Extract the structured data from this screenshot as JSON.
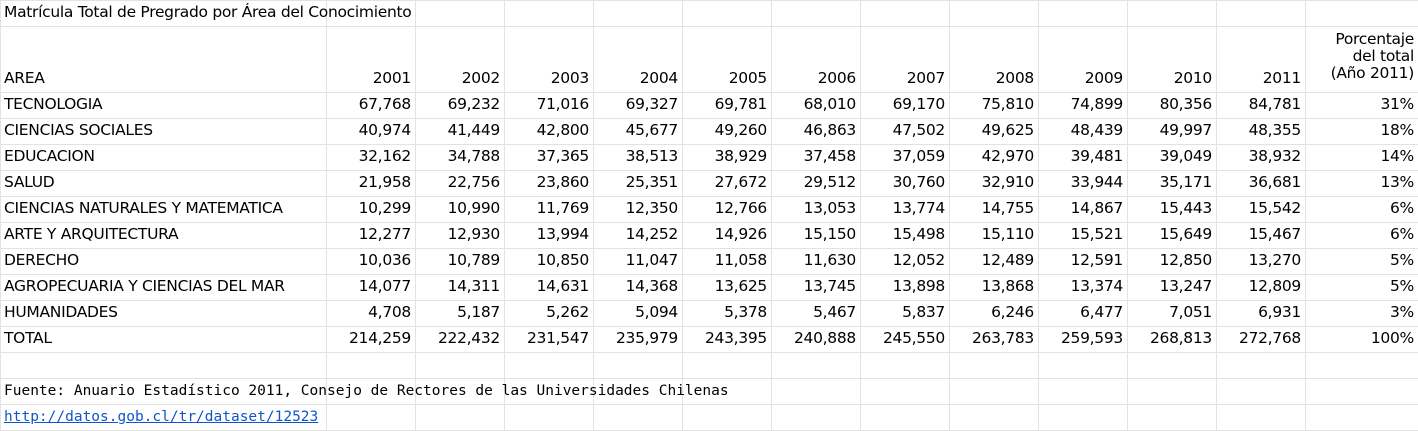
{
  "sheet": {
    "title": "Matrícula Total de Pregrado por Área del Conocimiento",
    "columns": [
      "AREA",
      "2001",
      "2002",
      "2003",
      "2004",
      "2005",
      "2006",
      "2007",
      "2008",
      "2009",
      "2010",
      "2011",
      "Porcentaje\ndel total\n(Año 2011)"
    ],
    "rows": [
      {
        "area": "TECNOLOGIA",
        "values": [
          "67,768",
          "69,232",
          "71,016",
          "69,327",
          "69,781",
          "68,010",
          "69,170",
          "75,810",
          "74,899",
          "80,356",
          "84,781",
          "31%"
        ]
      },
      {
        "area": "CIENCIAS SOCIALES",
        "values": [
          "40,974",
          "41,449",
          "42,800",
          "45,677",
          "49,260",
          "46,863",
          "47,502",
          "49,625",
          "48,439",
          "49,997",
          "48,355",
          "18%"
        ]
      },
      {
        "area": "EDUCACION",
        "values": [
          "32,162",
          "34,788",
          "37,365",
          "38,513",
          "38,929",
          "37,458",
          "37,059",
          "42,970",
          "39,481",
          "39,049",
          "38,932",
          "14%"
        ]
      },
      {
        "area": "SALUD",
        "values": [
          "21,958",
          "22,756",
          "23,860",
          "25,351",
          "27,672",
          "29,512",
          "30,760",
          "32,910",
          "33,944",
          "35,171",
          "36,681",
          "13%"
        ]
      },
      {
        "area": "CIENCIAS NATURALES Y MATEMATICA",
        "values": [
          "10,299",
          "10,990",
          "11,769",
          "12,350",
          "12,766",
          "13,053",
          "13,774",
          "14,755",
          "14,867",
          "15,443",
          "15,542",
          "6%"
        ]
      },
      {
        "area": "ARTE Y ARQUITECTURA",
        "values": [
          "12,277",
          "12,930",
          "13,994",
          "14,252",
          "14,926",
          "15,150",
          "15,498",
          "15,110",
          "15,521",
          "15,649",
          "15,467",
          "6%"
        ]
      },
      {
        "area": "DERECHO",
        "values": [
          "10,036",
          "10,789",
          "10,850",
          "11,047",
          "11,058",
          "11,630",
          "12,052",
          "12,489",
          "12,591",
          "12,850",
          "13,270",
          "5%"
        ]
      },
      {
        "area": "AGROPECUARIA Y CIENCIAS DEL MAR",
        "values": [
          "14,077",
          "14,311",
          "14,631",
          "14,368",
          "13,625",
          "13,745",
          "13,898",
          "13,868",
          "13,374",
          "13,247",
          "12,809",
          "5%"
        ]
      },
      {
        "area": "HUMANIDADES",
        "values": [
          "4,708",
          "5,187",
          "5,262",
          "5,094",
          "5,378",
          "5,467",
          "5,837",
          "6,246",
          "6,477",
          "7,051",
          "6,931",
          "3%"
        ]
      },
      {
        "area": "TOTAL",
        "values": [
          "214,259",
          "222,432",
          "231,547",
          "235,979",
          "243,395",
          "240,888",
          "245,550",
          "263,783",
          "259,593",
          "268,813",
          "272,768",
          "100%"
        ]
      }
    ],
    "source": "Fuente: Anuario Estadístico 2011, Consejo de Rectores de las Universidades Chilenas",
    "link": "http://datos.gob.cl/tr/dataset/12523"
  }
}
